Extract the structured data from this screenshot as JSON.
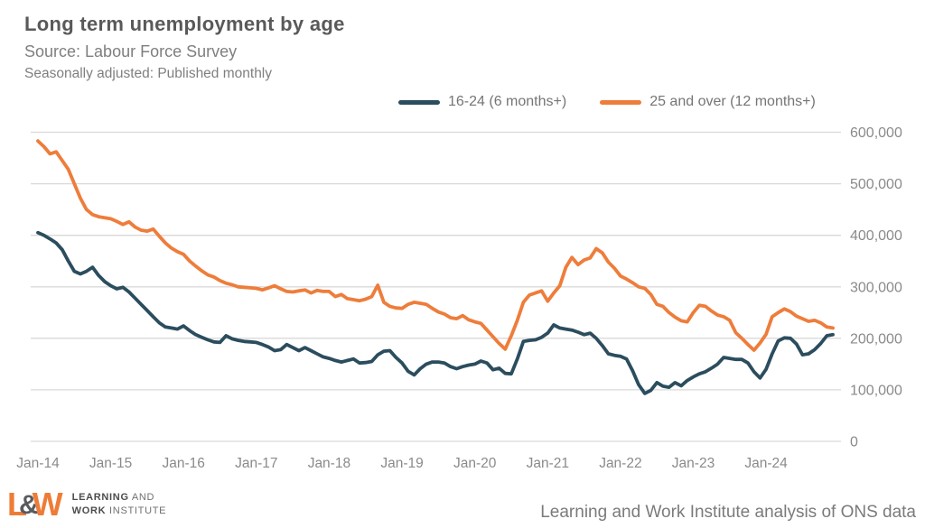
{
  "header": {
    "title": "Long term unemployment by age",
    "source": "Source: Labour Force Survey",
    "frequency": "Seasonally adjusted: Published monthly"
  },
  "footer": {
    "caption": "Learning and Work Institute analysis of ONS data",
    "logo": {
      "letter_l": "L",
      "letter_amp": "&",
      "letter_w": "W",
      "line1_bold": "LEARNING",
      "line1_rest": " AND",
      "line2_bold": "WORK",
      "line2_rest": " INSTITUTE",
      "orange": "#ee7c37",
      "gray": "#5a5b5e"
    }
  },
  "chart_data": {
    "type": "line",
    "title": "Long term unemployment by age",
    "x_frequency": "monthly",
    "x_start": "Jan-14",
    "x_end": "Dec-24",
    "x_tick_labels": [
      "Jan-14",
      "Jan-15",
      "Jan-16",
      "Jan-17",
      "Jan-18",
      "Jan-19",
      "Jan-20",
      "Jan-21",
      "Jan-22",
      "Jan-23",
      "Jan-24"
    ],
    "x_tick_every": 12,
    "ylim": [
      0,
      600000
    ],
    "y_ticks": [
      0,
      100000,
      200000,
      300000,
      400000,
      500000,
      600000
    ],
    "y_tick_labels": [
      "0",
      "100,000",
      "200,000",
      "300,000",
      "400,000",
      "500,000",
      "600,000"
    ],
    "grid": "horizontal",
    "gridline_color": "#d9d9d9",
    "legend_position": "top",
    "series": [
      {
        "name": "16-24 (6 months+)",
        "color": "#2b4d5e",
        "values": [
          405000,
          400000,
          393000,
          385000,
          372000,
          350000,
          330000,
          325000,
          330000,
          338000,
          322000,
          310000,
          302000,
          296000,
          299000,
          290000,
          278000,
          266000,
          254000,
          242000,
          230000,
          222000,
          220000,
          218000,
          224000,
          215000,
          207000,
          202000,
          197000,
          193000,
          192000,
          205000,
          199000,
          196000,
          194000,
          193000,
          192000,
          188000,
          183000,
          176000,
          178000,
          188000,
          182000,
          176000,
          182000,
          176000,
          170000,
          164000,
          161000,
          157000,
          154000,
          157000,
          160000,
          152000,
          153000,
          155000,
          168000,
          175000,
          176000,
          163000,
          152000,
          136000,
          129000,
          141000,
          150000,
          154000,
          154000,
          152000,
          145000,
          141000,
          145000,
          148000,
          150000,
          156000,
          152000,
          139000,
          142000,
          132000,
          131000,
          160000,
          194000,
          196000,
          197000,
          202000,
          210000,
          226000,
          220000,
          218000,
          216000,
          212000,
          207000,
          210000,
          200000,
          186000,
          170000,
          167000,
          165000,
          160000,
          137000,
          110000,
          93000,
          99000,
          114000,
          107000,
          105000,
          114000,
          108000,
          118000,
          125000,
          131000,
          135000,
          142000,
          150000,
          163000,
          161000,
          159000,
          159000,
          152000,
          135000,
          123000,
          140000,
          170000,
          195000,
          201000,
          200000,
          189000,
          168000,
          170000,
          178000,
          190000,
          205000,
          207000
        ]
      },
      {
        "name": "25 and over (12 months+)",
        "color": "#ee7d3b",
        "values": [
          583000,
          572000,
          558000,
          562000,
          545000,
          528000,
          500000,
          472000,
          450000,
          440000,
          436000,
          434000,
          432000,
          427000,
          421000,
          426000,
          416000,
          410000,
          408000,
          412000,
          398000,
          385000,
          375000,
          368000,
          363000,
          350000,
          340000,
          331000,
          323000,
          319000,
          312000,
          307000,
          304000,
          300000,
          299000,
          298000,
          297000,
          294000,
          298000,
          302000,
          296000,
          291000,
          290000,
          292000,
          294000,
          288000,
          293000,
          291000,
          291000,
          281000,
          285000,
          277000,
          275000,
          273000,
          276000,
          281000,
          303000,
          270000,
          262000,
          259000,
          258000,
          266000,
          270000,
          268000,
          266000,
          258000,
          251000,
          247000,
          240000,
          238000,
          244000,
          236000,
          232000,
          229000,
          216000,
          203000,
          190000,
          179000,
          205000,
          235000,
          270000,
          284000,
          288000,
          292000,
          272000,
          288000,
          302000,
          338000,
          357000,
          343000,
          352000,
          356000,
          374000,
          366000,
          348000,
          336000,
          321000,
          315000,
          308000,
          300000,
          297000,
          285000,
          266000,
          262000,
          250000,
          241000,
          234000,
          232000,
          250000,
          264000,
          262000,
          253000,
          245000,
          242000,
          235000,
          211000,
          200000,
          188000,
          177000,
          191000,
          208000,
          242000,
          250000,
          257000,
          252000,
          243000,
          238000,
          233000,
          235000,
          230000,
          222000,
          220000
        ]
      }
    ]
  }
}
